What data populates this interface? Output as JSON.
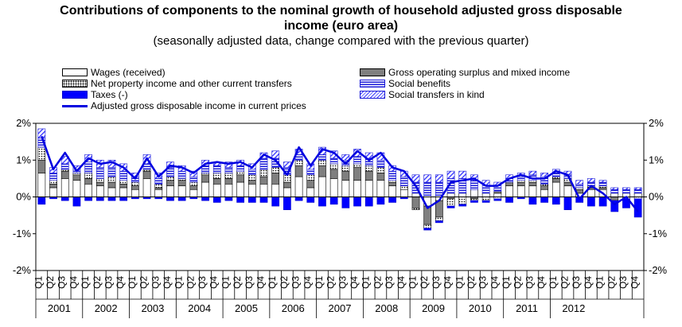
{
  "chart_data": {
    "type": "bar",
    "title_line1": "Contributions of components to the nominal growth of household adjusted gross disposable",
    "title_line2": "income (euro area)",
    "subtitle": "(seasonally adjusted data, change compared with the previous quarter)",
    "ylim": [
      -2,
      2
    ],
    "yticks": [
      "2%",
      "1%",
      "0%",
      "-1%",
      "-2%"
    ],
    "ytick_values": [
      2,
      1,
      0,
      -1,
      -2
    ],
    "quarters": [
      "Q1",
      "Q2",
      "Q3",
      "Q4"
    ],
    "years": [
      "2001",
      "2002",
      "2003",
      "2004",
      "2005",
      "2006",
      "2007",
      "2008",
      "2009",
      "2010",
      "2011",
      "2012"
    ],
    "legend": {
      "wages": "Wages (received)",
      "gos": "Gross operating surplus and mixed income",
      "property": "Net property income and other current transfers",
      "social": "Social benefits",
      "taxes": "Taxes (-)",
      "kind": "Social transfers in kind",
      "line": "Adjusted gross disposable income in current prices"
    },
    "colors": {
      "taxes": "#0000ff",
      "line": "#0000e0",
      "gos": "#7f7f7f",
      "social": "#1a1ad8"
    },
    "series": [
      {
        "name": "Wages (received)",
        "values": [
          0.65,
          0.25,
          0.5,
          0.45,
          0.35,
          0.3,
          0.25,
          0.25,
          0.2,
          0.5,
          0.2,
          0.3,
          0.3,
          0.2,
          0.4,
          0.35,
          0.35,
          0.4,
          0.35,
          0.35,
          0.35,
          0.25,
          0.55,
          0.25,
          0.55,
          0.5,
          0.45,
          0.45,
          0.45,
          0.45,
          0.3,
          0.2,
          0.1,
          -0.25,
          -0.1,
          0.1,
          0.1,
          0.2,
          0.1,
          0.1,
          0.3,
          0.3,
          0.3,
          0.2,
          0.4,
          0.3,
          0.1,
          0.2,
          0.2,
          0.1,
          0.1,
          0.1
        ]
      },
      {
        "name": "Gross operating surplus and mixed income",
        "values": [
          0.35,
          0.1,
          0.2,
          0.15,
          0.15,
          0.1,
          0.15,
          0.1,
          0.1,
          0.2,
          0.05,
          0.15,
          0.15,
          0.1,
          0.2,
          0.15,
          0.15,
          0.2,
          0.1,
          0.2,
          0.3,
          0.15,
          0.3,
          0.2,
          0.3,
          0.25,
          0.25,
          0.35,
          0.25,
          0.2,
          0.1,
          0.0,
          -0.3,
          -0.5,
          -0.45,
          -0.05,
          0.0,
          -0.05,
          0.0,
          0.05,
          0.1,
          0.1,
          0.1,
          0.1,
          0.1,
          0.1,
          0.1,
          0.05,
          0.05,
          -0.1,
          0.0,
          0.0
        ]
      },
      {
        "name": "Net property income and other current transfers",
        "values": [
          0.35,
          0.1,
          0.05,
          0.05,
          0.15,
          0.1,
          0.15,
          0.1,
          0.1,
          0.05,
          0.1,
          0.1,
          0.05,
          0.1,
          0.05,
          0.15,
          0.15,
          0.1,
          0.15,
          0.2,
          0.15,
          0.2,
          0.15,
          0.15,
          0.15,
          0.15,
          0.15,
          0.1,
          0.15,
          0.15,
          0.05,
          0.1,
          -0.05,
          -0.1,
          -0.1,
          -0.2,
          -0.2,
          -0.05,
          -0.1,
          -0.05,
          0.0,
          0.05,
          0.05,
          0.05,
          0.05,
          0.1,
          0.05,
          0.05,
          0.05,
          0.0,
          -0.05,
          -0.05
        ]
      },
      {
        "name": "Social benefits",
        "values": [
          0.25,
          0.2,
          0.15,
          0.1,
          0.3,
          0.3,
          0.25,
          0.25,
          0.15,
          0.15,
          0.15,
          0.25,
          0.2,
          0.15,
          0.2,
          0.2,
          0.15,
          0.15,
          0.15,
          0.3,
          0.25,
          0.2,
          0.15,
          0.15,
          0.15,
          0.15,
          0.15,
          0.2,
          0.2,
          0.2,
          0.25,
          0.25,
          0.3,
          0.4,
          0.4,
          0.4,
          0.4,
          0.25,
          0.2,
          0.15,
          0.1,
          0.1,
          0.15,
          0.2,
          0.1,
          0.1,
          0.1,
          0.1,
          0.1,
          0.1,
          0.1,
          0.1
        ]
      },
      {
        "name": "Social transfers in kind",
        "values": [
          0.25,
          0.15,
          0.2,
          0.1,
          0.2,
          0.2,
          0.2,
          0.2,
          0.1,
          0.25,
          0.15,
          0.15,
          0.15,
          0.15,
          0.15,
          0.1,
          0.15,
          0.15,
          0.15,
          0.15,
          0.2,
          0.15,
          0.15,
          0.15,
          0.2,
          0.2,
          0.15,
          0.2,
          0.15,
          0.2,
          0.15,
          0.15,
          0.2,
          0.2,
          0.2,
          0.2,
          0.2,
          0.15,
          0.15,
          0.1,
          0.1,
          0.1,
          0.1,
          0.1,
          0.1,
          0.1,
          0.1,
          0.1,
          0.05,
          0.05,
          0.05,
          0.05
        ]
      },
      {
        "name": "Taxes (-)",
        "values": [
          -0.2,
          -0.05,
          -0.1,
          -0.25,
          -0.1,
          -0.1,
          -0.1,
          -0.1,
          -0.05,
          -0.05,
          -0.05,
          -0.1,
          -0.1,
          -0.05,
          -0.1,
          -0.15,
          -0.1,
          -0.15,
          -0.15,
          -0.15,
          -0.25,
          -0.35,
          -0.1,
          -0.15,
          -0.25,
          -0.2,
          -0.3,
          -0.25,
          -0.25,
          -0.2,
          -0.15,
          -0.05,
          0.0,
          -0.05,
          -0.05,
          -0.05,
          -0.05,
          -0.05,
          -0.05,
          -0.05,
          -0.15,
          -0.05,
          -0.2,
          -0.15,
          -0.2,
          -0.35,
          -0.15,
          -0.25,
          -0.25,
          -0.3,
          -0.25,
          -0.5
        ]
      },
      {
        "name": "Adjusted gross disposable income in current prices",
        "values": [
          1.65,
          0.75,
          1.2,
          0.7,
          1.05,
          0.9,
          0.95,
          0.8,
          0.5,
          1.05,
          0.55,
          0.85,
          0.8,
          0.65,
          0.9,
          0.95,
          0.9,
          0.95,
          0.8,
          1.15,
          1.0,
          0.6,
          1.35,
          0.85,
          1.3,
          1.2,
          0.9,
          1.25,
          1.0,
          1.2,
          0.8,
          0.7,
          0.3,
          -0.3,
          -0.1,
          0.4,
          0.45,
          0.5,
          0.3,
          0.3,
          0.5,
          0.6,
          0.5,
          0.5,
          0.7,
          0.6,
          -0.05,
          0.3,
          0.1,
          -0.2,
          0.0,
          -0.4
        ]
      }
    ]
  }
}
